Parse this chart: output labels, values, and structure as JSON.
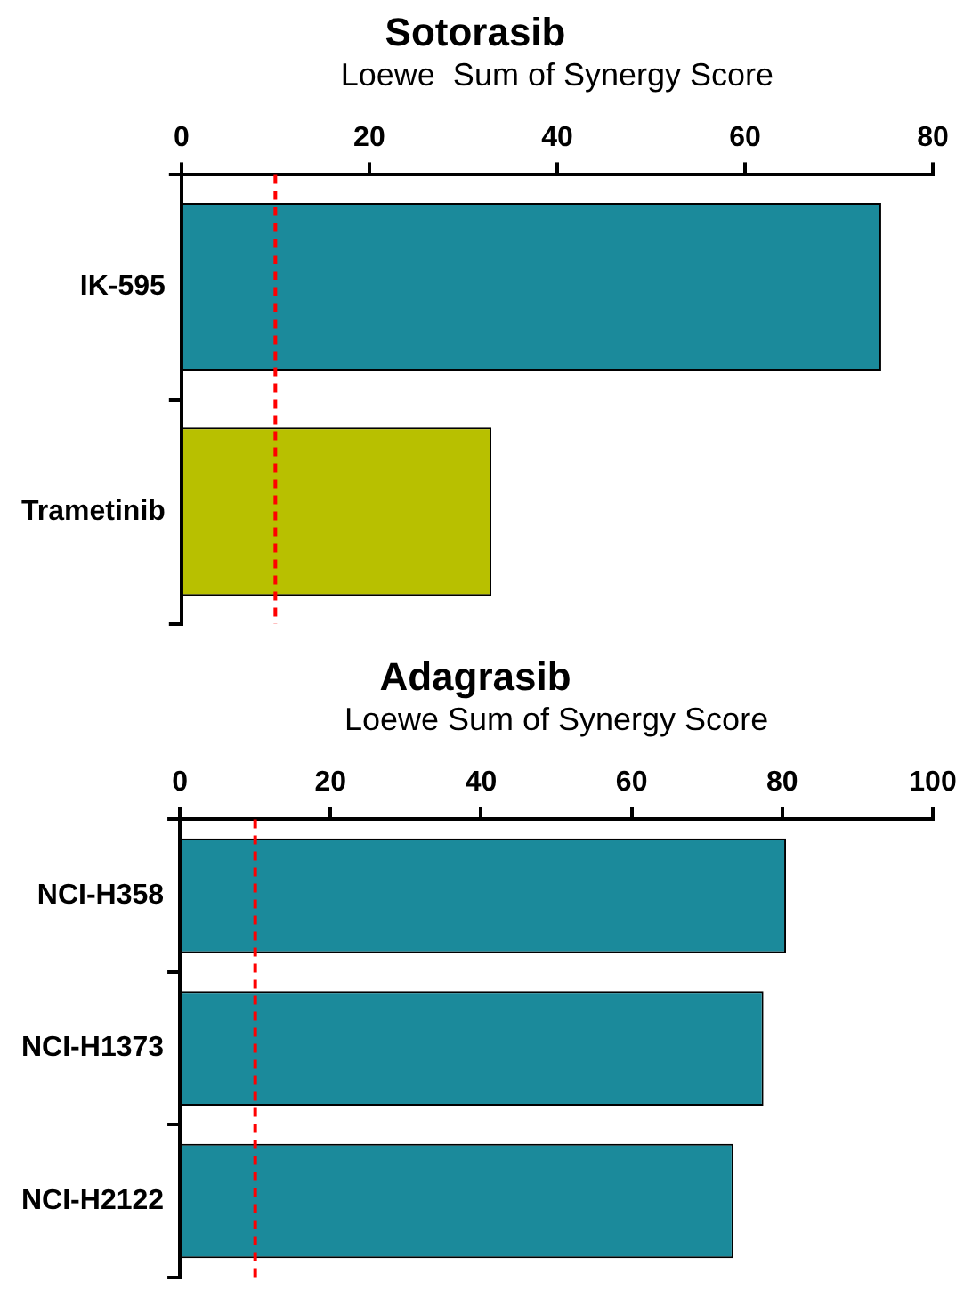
{
  "chart_data": [
    {
      "type": "bar",
      "orientation": "horizontal",
      "title": "Sotorasib",
      "xlabel": "Loewe  Sum of Synergy Score",
      "categories": [
        "IK-595",
        "Trametinib"
      ],
      "values": [
        74.5,
        33
      ],
      "colors": [
        "#1b8a9b",
        "#b8c000"
      ],
      "xlim": [
        0,
        80
      ],
      "xticks": [
        0,
        20,
        40,
        60,
        80
      ],
      "grid": false,
      "legend": false,
      "ref_lines": [
        {
          "axis": "x",
          "value": 10,
          "color": "#ff0000",
          "line_style": "dashed"
        }
      ]
    },
    {
      "type": "bar",
      "orientation": "horizontal",
      "title": "Adagrasib",
      "xlabel": "Loewe Sum of Synergy Score",
      "categories": [
        "NCI-H358",
        "NCI-H1373",
        "NCI-H2122"
      ],
      "values": [
        80.5,
        77.5,
        73.5
      ],
      "colors": [
        "#1b8a9b",
        "#1b8a9b",
        "#1b8a9b"
      ],
      "xlim": [
        0,
        100
      ],
      "xticks": [
        0,
        20,
        40,
        60,
        80,
        100
      ],
      "grid": false,
      "legend": false,
      "ref_lines": [
        {
          "axis": "x",
          "value": 10,
          "color": "#ff0000",
          "line_style": "dashed"
        }
      ]
    }
  ]
}
